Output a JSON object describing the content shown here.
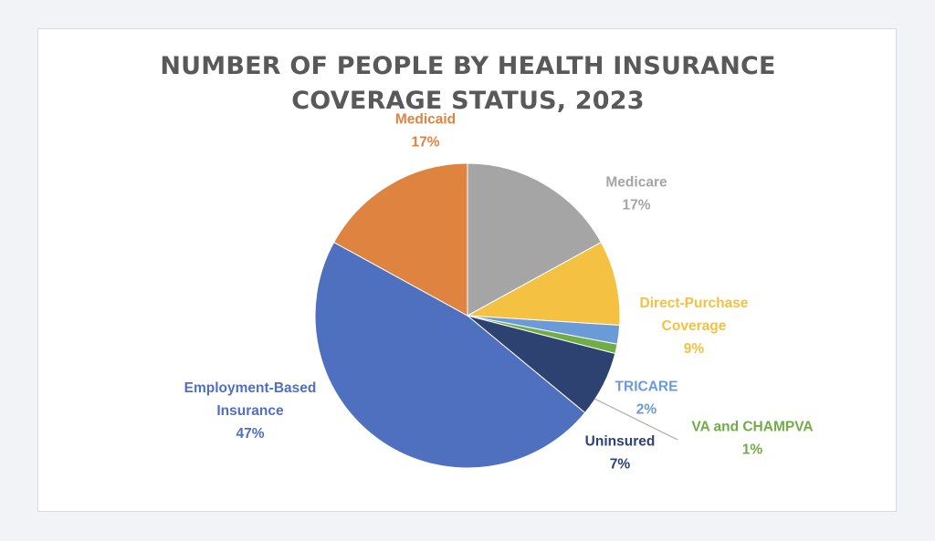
{
  "chart_data": {
    "type": "pie",
    "title": "NUMBER OF PEOPLE BY HEALTH INSURANCE COVERAGE STATUS, 2023",
    "title_lines": [
      "NUMBER OF PEOPLE BY HEALTH INSURANCE",
      "COVERAGE STATUS, 2023"
    ],
    "start_angle_deg": 0,
    "direction": "clockwise",
    "slices": [
      {
        "label": "Medicare",
        "label_lines": [
          "Medicare"
        ],
        "value": 17,
        "value_label": "17%",
        "color": "#a5a5a5"
      },
      {
        "label": "Direct-Purchase Coverage",
        "label_lines": [
          "Direct-Purchase",
          "Coverage"
        ],
        "value": 9,
        "value_label": "9%",
        "color": "#f4c142"
      },
      {
        "label": "TRICARE",
        "label_lines": [
          "TRICARE"
        ],
        "value": 2,
        "value_label": "2%",
        "color": "#6b9ad8"
      },
      {
        "label": "VA and CHAMPVA",
        "label_lines": [
          "VA and CHAMPVA"
        ],
        "value": 1,
        "value_label": "1%",
        "color": "#70ad47"
      },
      {
        "label": "Uninsured",
        "label_lines": [
          "Uninsured"
        ],
        "value": 7,
        "value_label": "7%",
        "color": "#2e4272"
      },
      {
        "label": "Employment-Based Insurance",
        "label_lines": [
          "Employment-Based",
          "Insurance"
        ],
        "value": 47,
        "value_label": "47%",
        "color": "#4f6fbf"
      },
      {
        "label": "Medicaid",
        "label_lines": [
          "Medicaid"
        ],
        "value": 17,
        "value_label": "17%",
        "color": "#df8340"
      }
    ]
  }
}
